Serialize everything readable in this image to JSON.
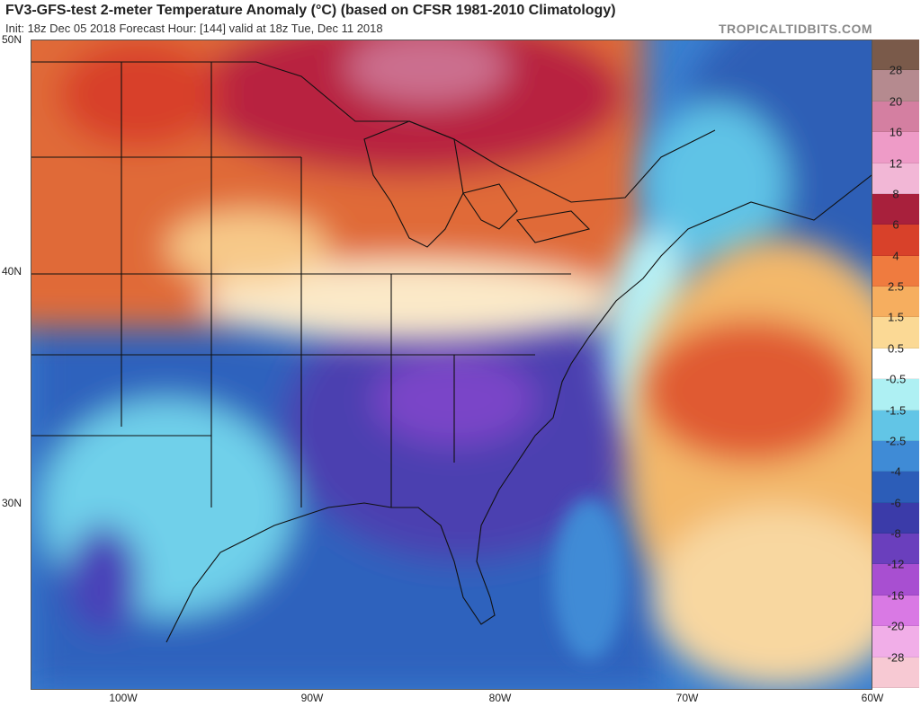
{
  "header": {
    "title": "FV3-GFS-test 2-meter Temperature Anomaly (°C) (based on CFSR 1981-2010 Climatology)",
    "subtitle": "Init: 18z Dec 05 2018   Forecast Hour: [144]   valid at 18z Tue, Dec 11 2018",
    "brand": "TROPICALTIDBITS.COM"
  },
  "map": {
    "lat_labels": [
      "50N",
      "40N",
      "30N"
    ],
    "lon_labels": [
      "100W",
      "90W",
      "80W",
      "70W",
      "60W"
    ],
    "anomaly_regions": [
      {
        "name": "northern-plains-warm",
        "level": "4"
      },
      {
        "name": "great-lakes-warm",
        "level": "6"
      },
      {
        "name": "ontario-warm",
        "level": "12"
      },
      {
        "name": "ohio-valley-neutral",
        "level": "0.5"
      },
      {
        "name": "southeast-cold",
        "level": "-8"
      },
      {
        "name": "carolinas-cold",
        "level": "-12"
      },
      {
        "name": "gulf-cold",
        "level": "-4"
      },
      {
        "name": "texas-cool",
        "level": "-1.5"
      },
      {
        "name": "atlantic-warm",
        "level": "4"
      },
      {
        "name": "labrador-sea-cold",
        "level": "-4"
      }
    ]
  },
  "colorbar": {
    "levels": [
      "28",
      "20",
      "16",
      "12",
      "8",
      "6",
      "4",
      "2.5",
      "1.5",
      "0.5",
      "-0.5",
      "-1.5",
      "-2.5",
      "-4",
      "-6",
      "-8",
      "-12",
      "-16",
      "-20",
      "-28"
    ],
    "colors": [
      "#7a5a4a",
      "#b58a8f",
      "#d47fa1",
      "#ee9bc7",
      "#f2b7d6",
      "#a8203c",
      "#d8412a",
      "#ef7b3f",
      "#f6ae5f",
      "#fbd995",
      "#ffffff",
      "#aef0f3",
      "#62c5e6",
      "#3f8bd6",
      "#2c5db8",
      "#3b3ba9",
      "#6a3fbd",
      "#a84fd1",
      "#d979e4",
      "#f1aee8",
      "#f7c9d3"
    ]
  }
}
